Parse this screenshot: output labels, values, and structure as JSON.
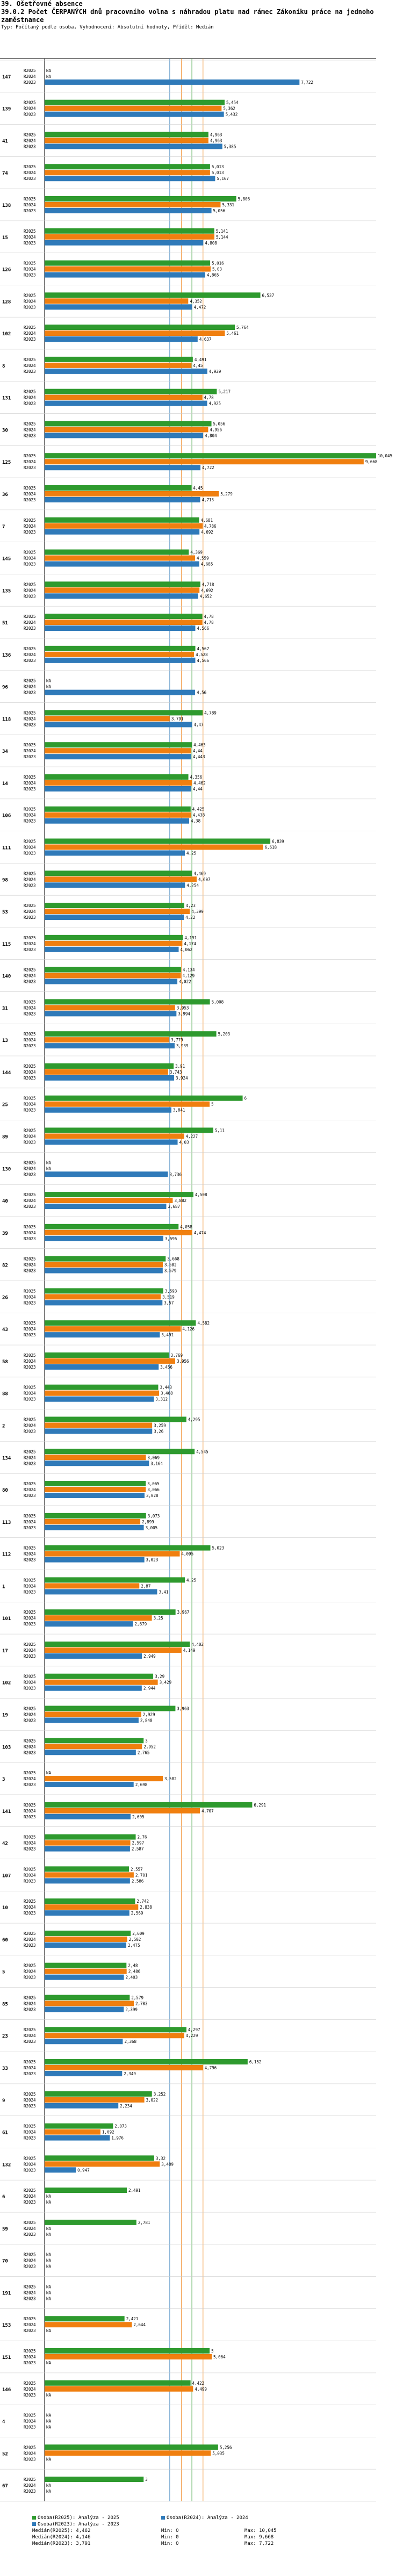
{
  "header": {
    "section": "39. Ošetřovné absence",
    "title": "39.0.2 Počet ČERPANÝCH dnů pracovního volna s náhradou platu nad rámec Zákoníku práce na jednoho zaměstnance",
    "subtitle": "Typ: Počítaný podle osoba, Vyhodnocení: Absolutní hodnoty, Příděl: Medián"
  },
  "colors": {
    "R2025": "#2e9a2e",
    "R2024": "#f07f0f",
    "R2023": "#2f7ab9",
    "grid": "#cccccc"
  },
  "chart_data": {
    "type": "bar",
    "orientation": "horizontal",
    "title": "39.0.2 Počet ČERPANÝCH dnů pracovního volna s náhradou platu nad rámec Zákoníku práce na jednoho zaměstnance",
    "series_names": [
      "R2025",
      "R2024",
      "R2023"
    ],
    "xlim": [
      0,
      10.045
    ],
    "reference_lines": [
      {
        "name": "Medián(R2025)",
        "value": 4.462,
        "color": "#2e9a2e"
      },
      {
        "name": "Medián(R2024)",
        "value": 4.146,
        "color": "#f07f0f"
      },
      {
        "name": "Medián(R2023)",
        "value": 3.791,
        "color": "#2f7ab9"
      },
      {
        "name": "Vážený průměr",
        "value": 4.8,
        "color": "#f07f0f"
      }
    ],
    "groups": [
      {
        "id": "147",
        "values": [
          null,
          null,
          7.722
        ]
      },
      {
        "id": "139",
        "values": [
          5.454,
          5.362,
          5.432
        ]
      },
      {
        "id": "41",
        "values": [
          4.963,
          4.963,
          5.385
        ]
      },
      {
        "id": "74",
        "values": [
          5.013,
          5.013,
          5.167
        ]
      },
      {
        "id": "138",
        "values": [
          5.806,
          5.331,
          5.056
        ]
      },
      {
        "id": "15",
        "values": [
          5.141,
          5.144,
          4.808
        ]
      },
      {
        "id": "126",
        "values": [
          5.016,
          5.03,
          4.865
        ]
      },
      {
        "id": "128",
        "values": [
          6.537,
          4.352,
          4.472
        ]
      },
      {
        "id": "102",
        "values": [
          5.764,
          5.461,
          4.637
        ]
      },
      {
        "id": "8",
        "values": [
          4.491,
          4.45,
          4.929
        ]
      },
      {
        "id": "131",
        "values": [
          5.217,
          4.78,
          4.925
        ]
      },
      {
        "id": "30",
        "values": [
          5.056,
          4.956,
          4.804
        ]
      },
      {
        "id": "125",
        "values": [
          10.045,
          9.668,
          4.722
        ]
      },
      {
        "id": "36",
        "values": [
          4.45,
          5.279,
          4.713
        ]
      },
      {
        "id": "7",
        "values": [
          4.681,
          4.786,
          4.692
        ]
      },
      {
        "id": "145",
        "values": [
          4.369,
          4.559,
          4.685
        ]
      },
      {
        "id": "135",
        "values": [
          4.718,
          4.692,
          4.652
        ]
      },
      {
        "id": "51",
        "values": [
          4.78,
          4.78,
          4.566
        ]
      },
      {
        "id": "136",
        "values": [
          4.567,
          4.528,
          4.566
        ]
      },
      {
        "id": "96",
        "values": [
          null,
          null,
          4.56
        ]
      },
      {
        "id": "118",
        "values": [
          4.789,
          3.791,
          4.47
        ]
      },
      {
        "id": "34",
        "values": [
          4.463,
          4.44,
          4.443
        ]
      },
      {
        "id": "14",
        "values": [
          4.356,
          4.462,
          4.44
        ]
      },
      {
        "id": "106",
        "values": [
          4.425,
          4.438,
          4.38
        ]
      },
      {
        "id": "111",
        "values": [
          6.839,
          6.618,
          4.25
        ]
      },
      {
        "id": "98",
        "values": [
          4.469,
          4.607,
          4.254
        ]
      },
      {
        "id": "53",
        "values": [
          4.23,
          4.399,
          4.22
        ]
      },
      {
        "id": "115",
        "values": [
          4.191,
          4.174,
          4.062
        ]
      },
      {
        "id": "140",
        "values": [
          4.134,
          4.129,
          4.022
        ]
      },
      {
        "id": "31",
        "values": [
          5.008,
          3.953,
          3.994
        ]
      },
      {
        "id": "13",
        "values": [
          5.203,
          3.779,
          3.939
        ]
      },
      {
        "id": "144",
        "values": [
          3.91,
          3.743,
          3.924
        ]
      },
      {
        "id": "25",
        "values": [
          6.0,
          5.0,
          3.841
        ]
      },
      {
        "id": "89",
        "values": [
          5.11,
          4.227,
          4.03
        ]
      },
      {
        "id": "130",
        "values": [
          null,
          null,
          3.736
        ]
      },
      {
        "id": "40",
        "values": [
          4.508,
          3.882,
          3.687
        ]
      },
      {
        "id": "39",
        "values": [
          4.058,
          4.474,
          3.595
        ]
      },
      {
        "id": "82",
        "values": [
          3.668,
          3.582,
          3.579
        ]
      },
      {
        "id": "26",
        "values": [
          3.593,
          3.519,
          3.57
        ]
      },
      {
        "id": "43",
        "values": [
          4.582,
          4.126,
          3.491
        ]
      },
      {
        "id": "58",
        "values": [
          3.769,
          3.956,
          3.456
        ]
      },
      {
        "id": "88",
        "values": [
          3.443,
          3.468,
          3.312
        ]
      },
      {
        "id": "2",
        "values": [
          4.295,
          3.259,
          3.26
        ]
      },
      {
        "id": "134",
        "values": [
          4.545,
          3.069,
          3.164
        ]
      },
      {
        "id": "80",
        "values": [
          3.065,
          3.066,
          3.028
        ]
      },
      {
        "id": "113",
        "values": [
          3.073,
          2.899,
          3.005
        ]
      },
      {
        "id": "112",
        "values": [
          5.023,
          4.095,
          3.023
        ]
      },
      {
        "id": "1",
        "values": [
          4.25,
          2.87,
          3.41
        ]
      },
      {
        "id": "101",
        "values": [
          3.967,
          3.25,
          2.679
        ]
      },
      {
        "id": "17",
        "values": [
          4.402,
          4.149,
          2.949
        ]
      },
      {
        "id": "102b",
        "values": [
          3.29,
          3.429,
          2.944
        ]
      },
      {
        "id": "19",
        "values": [
          3.963,
          2.929,
          2.848
        ]
      },
      {
        "id": "103",
        "values": [
          3.0,
          2.952,
          2.765
        ]
      },
      {
        "id": "3",
        "values": [
          null,
          3.582,
          2.698
        ]
      },
      {
        "id": "141",
        "values": [
          6.291,
          4.707,
          2.605
        ]
      },
      {
        "id": "42",
        "values": [
          2.76,
          2.597,
          2.587
        ]
      },
      {
        "id": "107",
        "values": [
          2.557,
          2.701,
          2.586
        ]
      },
      {
        "id": "10",
        "values": [
          2.742,
          2.838,
          2.569
        ]
      },
      {
        "id": "60",
        "values": [
          2.609,
          2.502,
          2.475
        ]
      },
      {
        "id": "5",
        "values": [
          2.48,
          2.486,
          2.403
        ]
      },
      {
        "id": "85",
        "values": [
          2.579,
          2.703,
          2.399
        ]
      },
      {
        "id": "23",
        "values": [
          4.297,
          4.229,
          2.368
        ]
      },
      {
        "id": "33",
        "values": [
          6.152,
          4.796,
          2.349
        ]
      },
      {
        "id": "9",
        "values": [
          3.252,
          3.022,
          2.234
        ]
      },
      {
        "id": "61",
        "values": [
          2.073,
          1.692,
          1.976
        ]
      },
      {
        "id": "132",
        "values": [
          3.32,
          3.489,
          0.947
        ]
      },
      {
        "id": "6",
        "values": [
          2.491,
          null,
          null
        ]
      },
      {
        "id": "59",
        "values": [
          2.781,
          null,
          null
        ]
      },
      {
        "id": "70",
        "values": [
          null,
          null,
          null
        ]
      },
      {
        "id": "191",
        "values": [
          null,
          null,
          null
        ]
      },
      {
        "id": "153",
        "values": [
          2.421,
          2.644,
          null
        ]
      },
      {
        "id": "151",
        "values": [
          5.0,
          5.064,
          null
        ]
      },
      {
        "id": "146",
        "values": [
          4.422,
          4.499,
          null
        ]
      },
      {
        "id": "4",
        "values": [
          null,
          null,
          null
        ]
      },
      {
        "id": "52",
        "values": [
          5.256,
          5.035,
          null
        ]
      },
      {
        "id": "67",
        "values": [
          3.0,
          null,
          null
        ]
      }
    ]
  },
  "footer": {
    "rows": [
      [
        {
          "swatch": "#2e9a2e",
          "text": "Osoba(R2025): Analýza - 2025"
        },
        {
          "swatch": "#2f7ab9",
          "text": "Osoba(R2024): Analýza - 2024"
        }
      ],
      [
        {
          "swatch": "#2f7ab9",
          "text": "Osoba(R2023): Analýza - 2023"
        }
      ],
      [
        {
          "swatch": "",
          "text": "Medián(R2025): 4,462"
        },
        {
          "swatch": "",
          "text": "Min: 0"
        },
        {
          "swatch": "",
          "text": "Max: 10,045"
        }
      ],
      [
        {
          "swatch": "",
          "text": "Medián(R2024): 4,146"
        },
        {
          "swatch": "",
          "text": "Min: 0"
        },
        {
          "swatch": "",
          "text": "Max: 9,668"
        }
      ],
      [
        {
          "swatch": "",
          "text": "Medián(R2023): 3,791"
        },
        {
          "swatch": "",
          "text": "Min: 0"
        },
        {
          "swatch": "",
          "text": "Max: 7,722"
        }
      ]
    ]
  },
  "na_label": "NA"
}
